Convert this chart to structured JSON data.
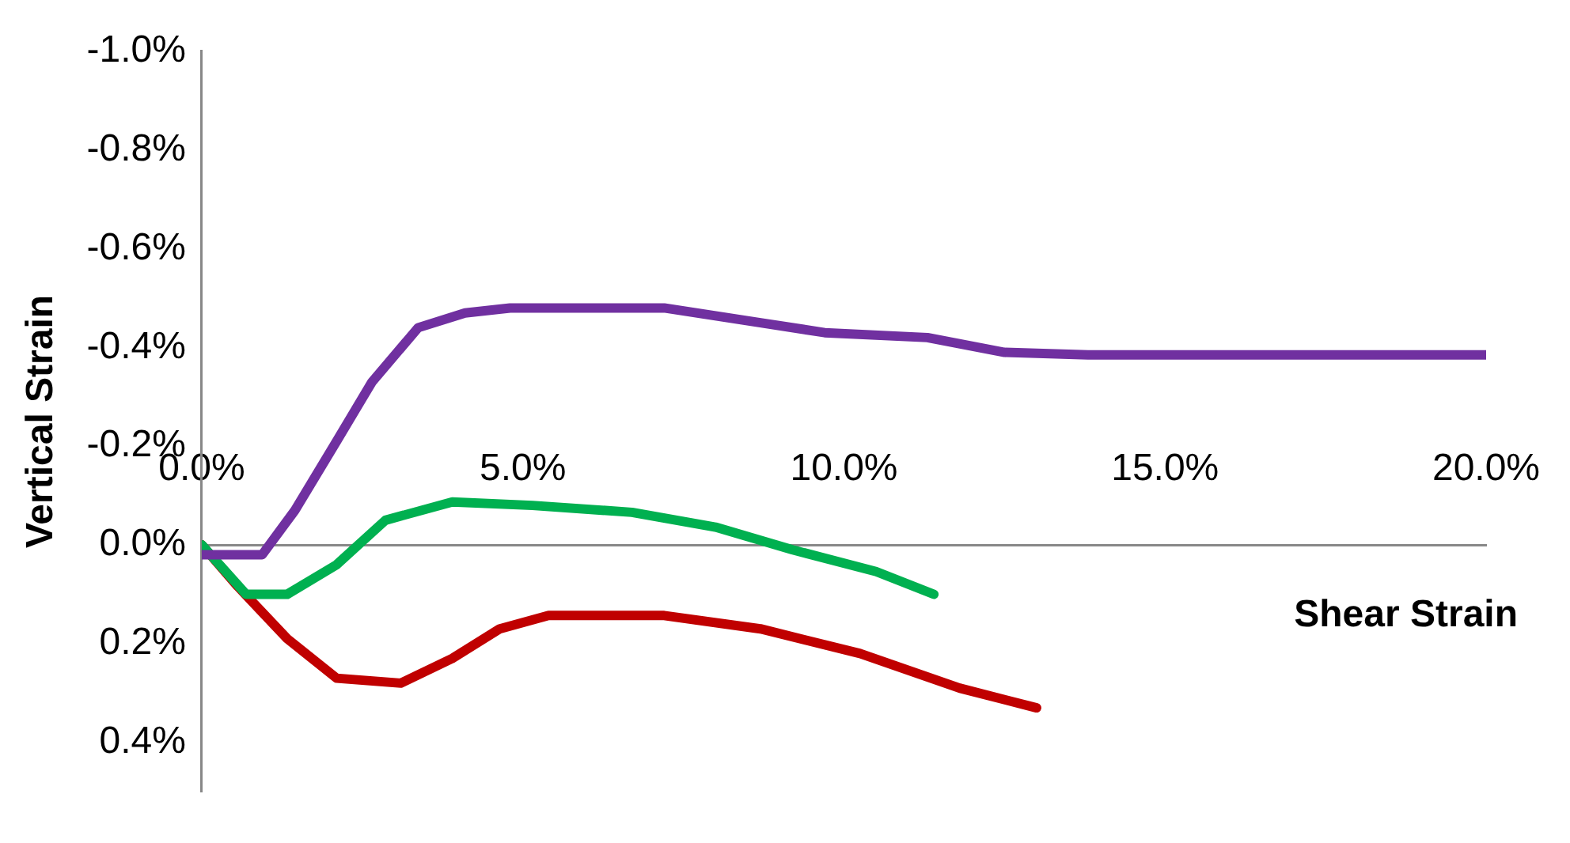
{
  "chart_data": {
    "type": "line",
    "xlabel": "Shear Strain",
    "ylabel": "Vertical Strain",
    "xlim": [
      0,
      20
    ],
    "xticks": [
      {
        "value": 0,
        "label": "0.0%"
      },
      {
        "value": 5,
        "label": "5.0%"
      },
      {
        "value": 10,
        "label": "10.0%"
      },
      {
        "value": 15,
        "label": "15.0%"
      },
      {
        "value": 20,
        "label": "20.0%"
      }
    ],
    "ylim": [
      0.5,
      -1.0
    ],
    "yticks": [
      {
        "value": -1.0,
        "label": "-1.0%"
      },
      {
        "value": -0.8,
        "label": "-0.8%"
      },
      {
        "value": -0.6,
        "label": "-0.6%"
      },
      {
        "value": -0.4,
        "label": "-0.4%"
      },
      {
        "value": -0.2,
        "label": "-0.2%"
      },
      {
        "value": 0,
        "label": "0.0%"
      },
      {
        "value": 0.2,
        "label": "0.2%"
      },
      {
        "value": 0.4,
        "label": "0.4%"
      }
    ],
    "grid": false,
    "legend": false,
    "marker": "none",
    "line_style": "solid",
    "series": [
      {
        "color": "#7030a0",
        "x": [
          0,
          0.94,
          1.45,
          2.1,
          2.65,
          3.37,
          4.1,
          4.8,
          7.2,
          8.7,
          9.7,
          11.3,
          12.5,
          13.8,
          16.4,
          20
        ],
        "values": [
          0.02,
          0.02,
          -0.07,
          -0.21,
          -0.33,
          -0.44,
          -0.47,
          -0.48,
          -0.48,
          -0.45,
          -0.43,
          -0.42,
          -0.39,
          -0.385,
          -0.385,
          -0.385
        ]
      },
      {
        "color": "#00b050",
        "x": [
          0,
          0.69,
          1.33,
          2.1,
          2.86,
          3.9,
          5.15,
          6.7,
          8,
          9.2,
          10.5,
          11.4
        ],
        "values": [
          0,
          0.1,
          0.1,
          0.04,
          -0.05,
          -0.087,
          -0.08,
          -0.066,
          -0.036,
          0.01,
          0.054,
          0.1
        ]
      },
      {
        "color": "#c00000",
        "x": [
          0,
          0.56,
          1.33,
          2.1,
          3.1,
          3.9,
          4.64,
          5.4,
          7.2,
          8.7,
          10.25,
          11.8,
          13
        ],
        "values": [
          0,
          0.084,
          0.19,
          0.27,
          0.28,
          0.23,
          0.17,
          0.143,
          0.143,
          0.17,
          0.22,
          0.29,
          0.33
        ]
      }
    ]
  }
}
